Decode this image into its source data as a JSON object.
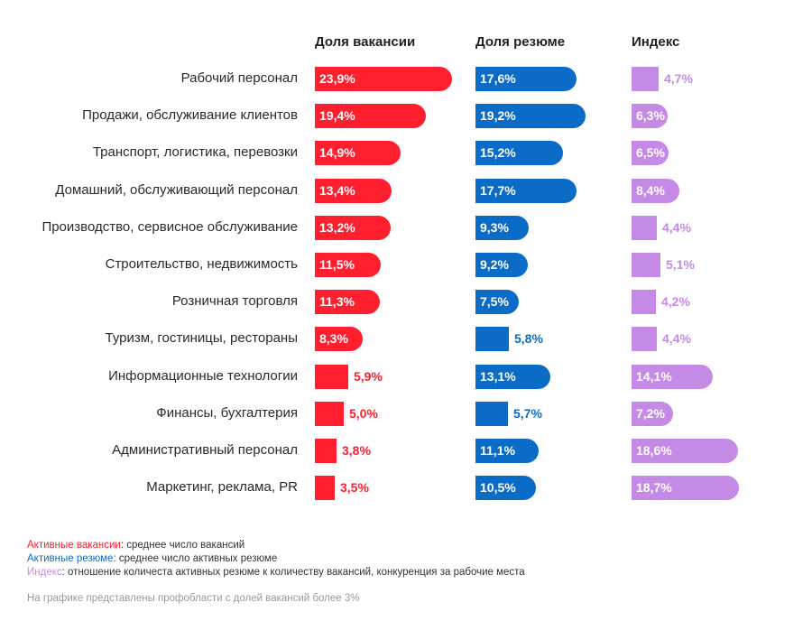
{
  "colors": {
    "vacancies": "#ff1f2e",
    "resumes": "#0b6cc7",
    "index": "#c58ae6",
    "footnote": "#9a9a9a"
  },
  "chart_data": {
    "type": "bar",
    "title": "",
    "columns": [
      {
        "key": "vacancies",
        "name": "Доля вакансии",
        "color": "#ff1f2e"
      },
      {
        "key": "resumes",
        "name": "Доля резюме",
        "color": "#0b6cc7"
      },
      {
        "key": "index",
        "name": "Индекс",
        "color": "#c58ae6"
      }
    ],
    "categories": [
      "Рабочий персонал",
      "Продажи, обслуживание клиентов",
      "Транспорт, логистика, перевозки",
      "Домашний, обслуживающий персонал",
      "Производство, сервисное обслуживание",
      "Строительство, недвижимость",
      "Розничная торговля",
      "Туризм, гостиницы, рестораны",
      "Информационные технологии",
      "Финансы, бухгалтерия",
      "Административный персонал",
      "Маркетинг, реклама, PR"
    ],
    "series": [
      {
        "name": "Доля вакансии",
        "values": [
          23.9,
          19.4,
          14.9,
          13.4,
          13.2,
          11.5,
          11.3,
          8.3,
          5.9,
          5.0,
          3.8,
          3.5
        ],
        "labels": [
          "23,9%",
          "19,4%",
          "14,9%",
          "13,4%",
          "13,2%",
          "11,5%",
          "11,3%",
          "8,3%",
          "5,9%",
          "5,0%",
          "3,8%",
          "3,5%"
        ]
      },
      {
        "name": "Доля резюме",
        "values": [
          17.6,
          19.2,
          15.2,
          17.7,
          9.3,
          9.2,
          7.5,
          5.8,
          13.1,
          5.7,
          11.1,
          10.5
        ],
        "labels": [
          "17,6%",
          "19,2%",
          "15,2%",
          "17,7%",
          "9,3%",
          "9,2%",
          "7,5%",
          "5,8%",
          "13,1%",
          "5,7%",
          "11,1%",
          "10,5%"
        ]
      },
      {
        "name": "Индекс",
        "values": [
          4.7,
          6.3,
          6.5,
          8.4,
          4.4,
          5.1,
          4.2,
          4.4,
          14.1,
          7.2,
          18.6,
          18.7
        ],
        "labels": [
          "4,7%",
          "6,3%",
          "6,5%",
          "8,4%",
          "4,4%",
          "5,1%",
          "4,2%",
          "4,4%",
          "14,1%",
          "7,2%",
          "18,6%",
          "18,7%"
        ]
      }
    ]
  },
  "legend": [
    {
      "key": "Активные вакансии",
      "text": ": среднее число вакансий",
      "color": "#ff1f2e"
    },
    {
      "key": "Активные резюме",
      "text": ": среднее число активных резюме",
      "color": "#0b6cc7"
    },
    {
      "key": "Индекс",
      "text": ": отношение количеста активных резюме к количеству вакансий, конкуренция за рабочие места",
      "color": "#c58ae6"
    }
  ],
  "footnote": "На графике представлены профобласти с долей вакансий более 3%"
}
